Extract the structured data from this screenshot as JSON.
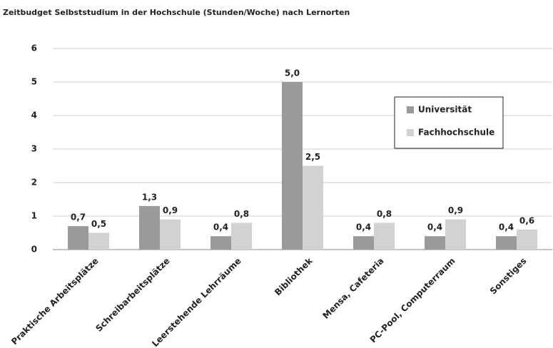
{
  "chart_data": {
    "type": "bar",
    "title": "Zeitbudget Selbststudium in der Hochschule (Stunden/Woche) nach Lernorten",
    "categories": [
      "Praktische Arbeitsplätze",
      "Schreibarbeitsplätze",
      "Leerstehende Lehrräume",
      "Bibliothek",
      "Mensa, Cafeteria",
      "PC-Pool, Computerraum",
      "Sonstiges"
    ],
    "series": [
      {
        "name": "Universität",
        "color": "#9a9a9a",
        "values": [
          0.7,
          1.3,
          0.4,
          5.0,
          0.4,
          0.4,
          0.4
        ],
        "value_labels": [
          "0,7",
          "1,3",
          "0,4",
          "5,0",
          "0,4",
          "0,4",
          "0,4"
        ]
      },
      {
        "name": "Fachhochschule",
        "color": "#d2d2d2",
        "values": [
          0.5,
          0.9,
          0.8,
          2.5,
          0.8,
          0.9,
          0.6
        ],
        "value_labels": [
          "0,5",
          "0,9",
          "0,8",
          "2,5",
          "0,8",
          "0,9",
          "0,6"
        ]
      }
    ],
    "ylim": [
      0,
      6
    ],
    "yticks": [
      0,
      1,
      2,
      3,
      4,
      5,
      6
    ],
    "grid": true,
    "legend": "right"
  }
}
